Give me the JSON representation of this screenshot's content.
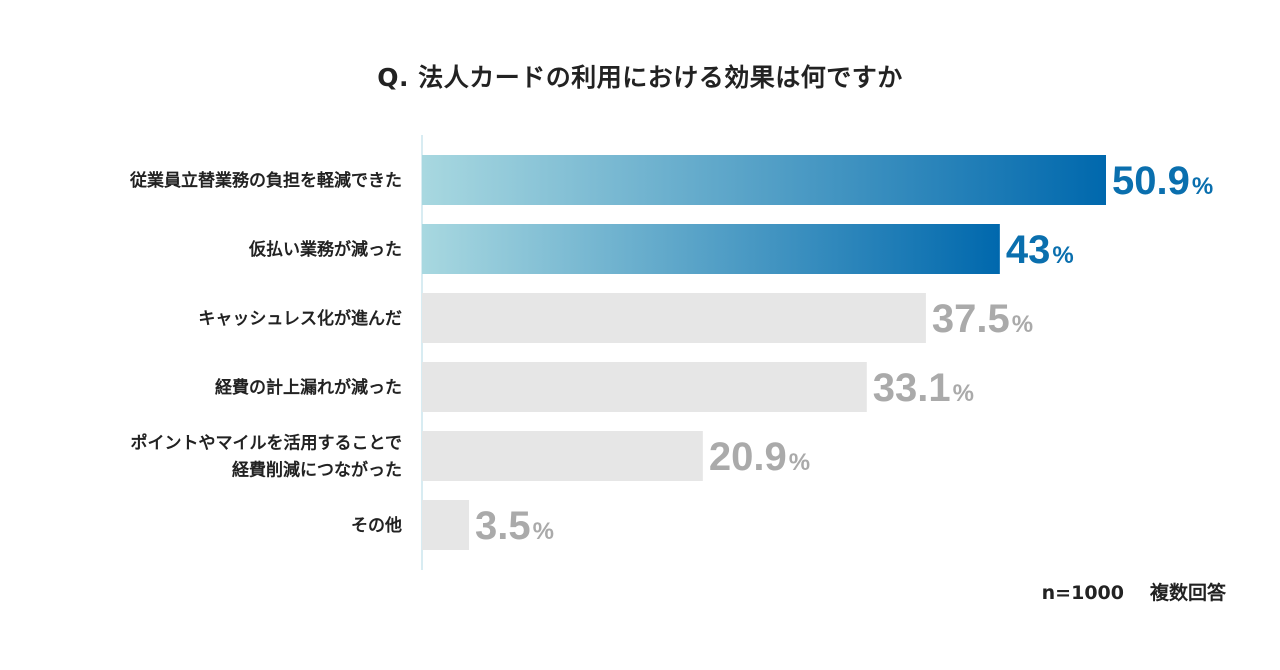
{
  "chart_data": {
    "type": "bar",
    "orientation": "horizontal",
    "title": "Q. 法人カードの利用における効果は何ですか",
    "categories": [
      [
        "従業員立替業務の負担を軽減できた"
      ],
      [
        "仮払い業務が減った"
      ],
      [
        "キャッシュレス化が進んだ"
      ],
      [
        "経費の計上漏れが減った"
      ],
      [
        "ポイントやマイルを活用することで",
        "経費削減につながった"
      ],
      [
        "その他"
      ]
    ],
    "values": [
      50.9,
      43,
      37.5,
      33.1,
      20.9,
      3.5
    ],
    "value_labels": [
      "50.9",
      "43",
      "37.5",
      "33.1",
      "20.9",
      "3.5"
    ],
    "unit": "%",
    "highlighted": [
      true,
      true,
      false,
      false,
      false,
      false
    ],
    "xlim": [
      0,
      50.9
    ],
    "grid": false,
    "colors": {
      "highlight_start": "#a8d8e0",
      "highlight_end": "#0068ad",
      "highlight_text": "#0a6fae",
      "muted_bar": "#e6e6e6",
      "muted_text": "#aaaaaa",
      "axis": "#bfe0e8"
    }
  },
  "footnote": {
    "sample": "n=1000",
    "note": "複数回答"
  }
}
